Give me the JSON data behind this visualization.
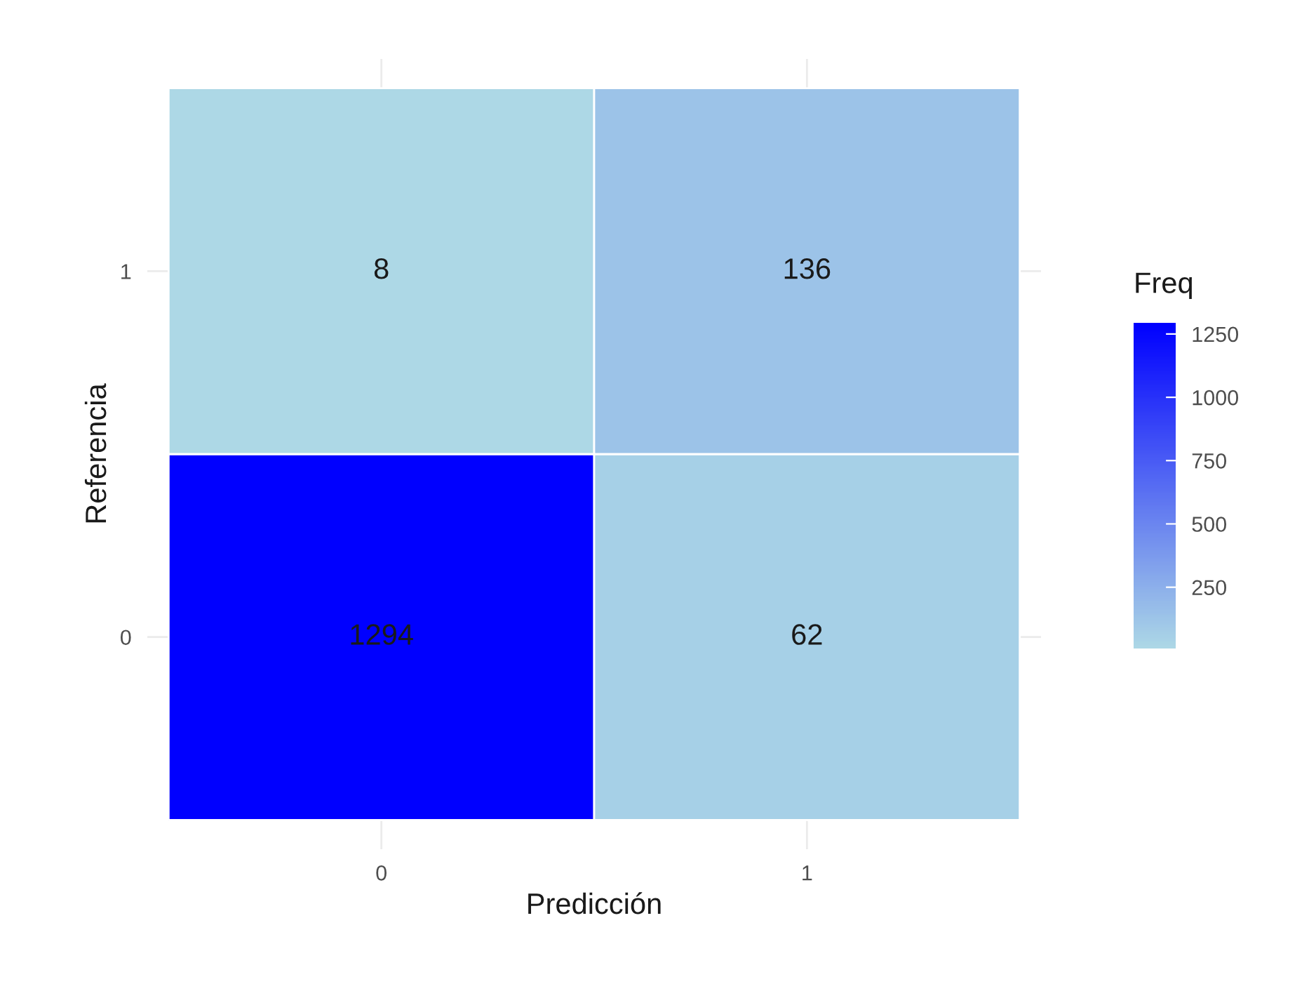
{
  "chart_data": {
    "type": "heatmap",
    "xlabel": "Predicción",
    "ylabel": "Referencia",
    "clabel": "Freq",
    "categories": [
      "0",
      "1"
    ],
    "y_categories": [
      "1",
      "0"
    ],
    "cells": [
      [
        8,
        136
      ],
      [
        1294,
        62
      ]
    ],
    "clim": [
      8,
      1294
    ],
    "cticks": [
      250,
      500,
      750,
      1000,
      1250
    ],
    "colors": [
      "#add8e6",
      "#0000ff"
    ],
    "data_labels": true,
    "grid": true
  }
}
